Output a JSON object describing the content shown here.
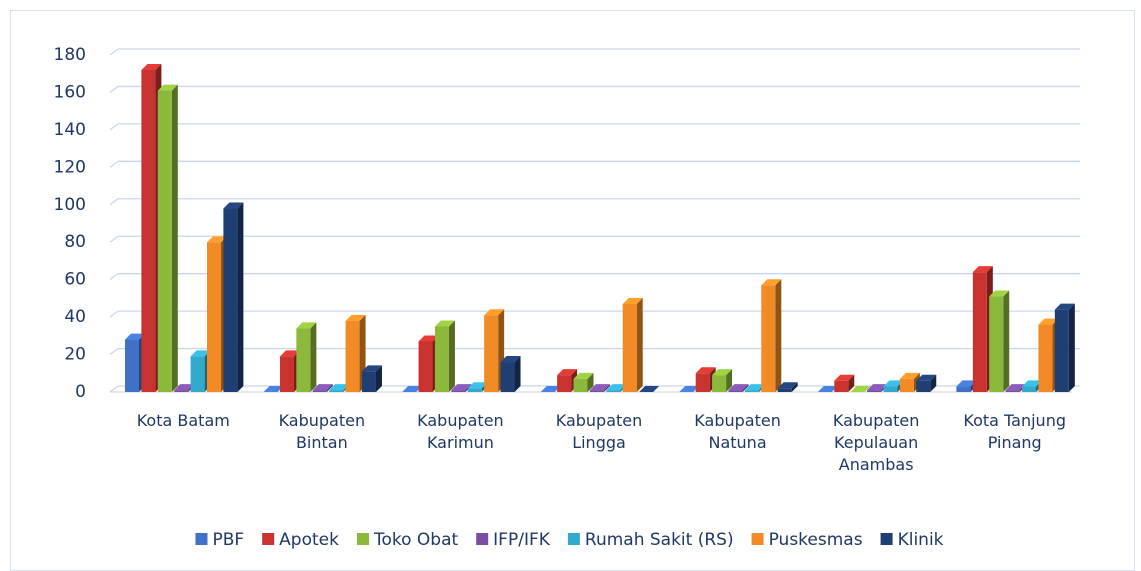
{
  "chart_data": {
    "type": "bar",
    "categories": [
      "Kota Batam",
      "Kabupaten Bintan",
      "Kabupaten Karimun",
      "Kabupaten Lingga",
      "Kabupaten Natuna",
      "Kabupaten Kepulauan Anambas",
      "Kota Tanjung Pinang"
    ],
    "series": [
      {
        "name": "PBF",
        "color": "#3f72c6",
        "values": [
          28,
          0,
          0,
          0,
          0,
          0,
          3
        ]
      },
      {
        "name": "Apotek",
        "color": "#c8332f",
        "values": [
          172,
          19,
          27,
          9,
          10,
          6,
          64
        ]
      },
      {
        "name": "Toko Obat",
        "color": "#8cb83c",
        "values": [
          161,
          34,
          35,
          7,
          9,
          0,
          51
        ]
      },
      {
        "name": "IFP/IFK",
        "color": "#7a4fa3",
        "values": [
          1,
          1,
          1,
          1,
          1,
          1,
          1
        ]
      },
      {
        "name": "Rumah Sakit (RS)",
        "color": "#33a9cc",
        "values": [
          19,
          1,
          2,
          1,
          1,
          3,
          3
        ]
      },
      {
        "name": "Puskesmas",
        "color": "#f28b25",
        "values": [
          80,
          38,
          41,
          47,
          57,
          7,
          36
        ]
      },
      {
        "name": "Klinik",
        "color": "#1f3e72",
        "values": [
          98,
          11,
          16,
          0,
          2,
          6,
          44
        ]
      }
    ],
    "ylim": [
      0,
      180
    ],
    "yticks": [
      0,
      20,
      40,
      60,
      80,
      100,
      120,
      140,
      160,
      180
    ],
    "grid": true,
    "legend": "bottom"
  }
}
